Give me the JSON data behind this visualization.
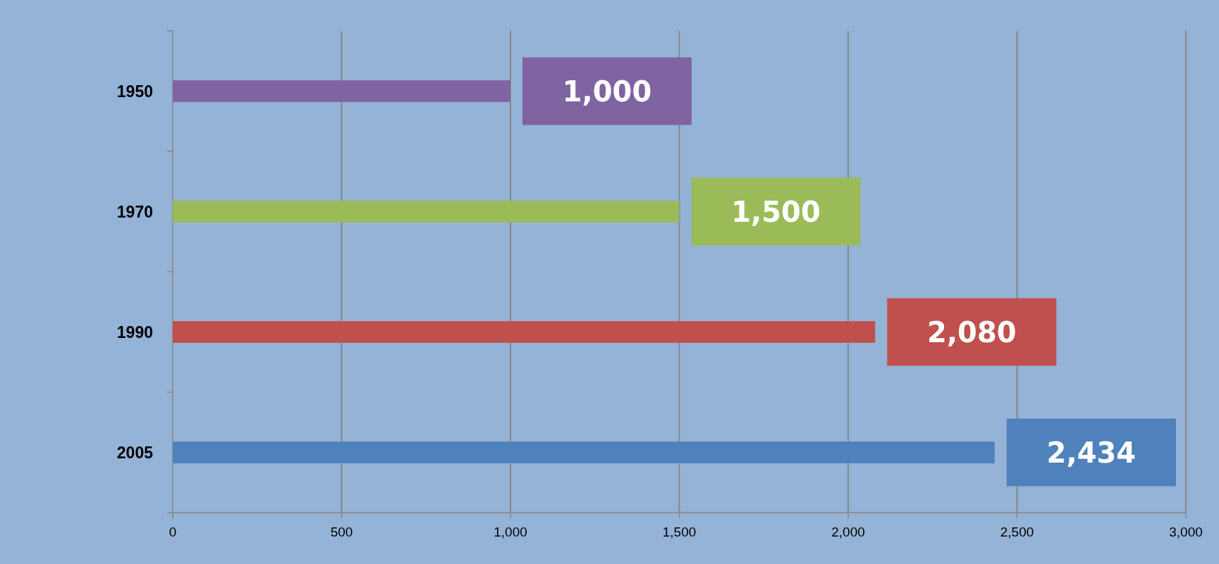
{
  "chart_data": {
    "type": "bar",
    "orientation": "horizontal",
    "categories": [
      "1950",
      "1970",
      "1990",
      "2005"
    ],
    "values": [
      1000,
      1500,
      2080,
      2434
    ],
    "colors": [
      "#8064a2",
      "#9bbb59",
      "#c0504d",
      "#4f81bd"
    ],
    "xlim": [
      0,
      3000
    ],
    "xticks": [
      {
        "value": 0,
        "label": "0"
      },
      {
        "value": 500,
        "label": "500"
      },
      {
        "value": 1000,
        "label": "1,000"
      },
      {
        "value": 1500,
        "label": "1,500"
      },
      {
        "value": 2000,
        "label": "2,000"
      },
      {
        "value": 2500,
        "label": "2,500"
      },
      {
        "value": 3000,
        "label": "3,000"
      }
    ],
    "value_labels": [
      "1,000",
      "1,500",
      "2,080",
      "2,434"
    ],
    "grid": "x"
  }
}
